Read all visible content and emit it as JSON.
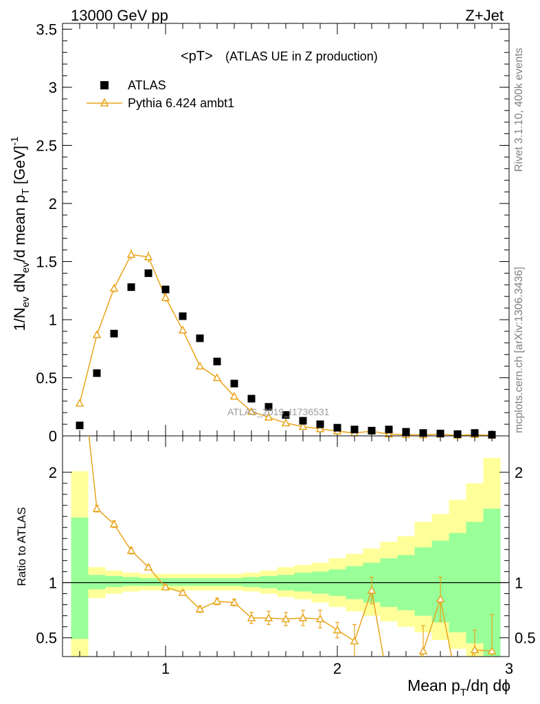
{
  "header": {
    "left": "13000 GeV pp",
    "right": "Z+Jet"
  },
  "plot_title": {
    "main": "<pT>",
    "sub": "(ATLAS UE in Z production)"
  },
  "side_labels": {
    "rivet": "Rivet 3.1.10,  400k events",
    "mcplots": "mcplots.cern.ch [arXiv:1306.3436]"
  },
  "watermark": "ATLAS_2019_I1736531",
  "legend": {
    "data": "ATLAS",
    "mc": "Pythia 6.424 ambt1"
  },
  "colors": {
    "data": "#000000",
    "mc": "#e8a317",
    "band_inner": "#99ff99",
    "band_outer": "#ffff99"
  },
  "chart_data": [
    {
      "type": "scatter",
      "panel": "main",
      "ylabel": "1/N_ev dN_ev/d mean p_T [GeV]^-1",
      "xlim": [
        0.4,
        3.0
      ],
      "ylim": [
        0,
        3.55
      ],
      "yticks": [
        "0",
        "0.5",
        "1",
        "1.5",
        "2",
        "2.5",
        "3",
        "3.5"
      ],
      "series": [
        {
          "name": "ATLAS",
          "x": [
            0.5,
            0.6,
            0.7,
            0.8,
            0.9,
            1.0,
            1.1,
            1.2,
            1.3,
            1.4,
            1.5,
            1.6,
            1.7,
            1.8,
            1.9,
            2.0,
            2.1,
            2.2,
            2.3,
            2.4,
            2.5,
            2.6,
            2.7,
            2.8,
            2.9
          ],
          "y": [
            0.09,
            0.54,
            0.88,
            1.28,
            1.4,
            1.26,
            1.03,
            0.84,
            0.64,
            0.45,
            0.32,
            0.25,
            0.18,
            0.13,
            0.1,
            0.07,
            0.055,
            0.045,
            0.055,
            0.035,
            0.025,
            0.02,
            0.015,
            0.025,
            0.01
          ]
        },
        {
          "name": "Pythia 6.424 ambt1",
          "x": [
            0.5,
            0.6,
            0.7,
            0.8,
            0.9,
            1.0,
            1.1,
            1.2,
            1.3,
            1.4,
            1.5,
            1.6,
            1.7,
            1.8,
            1.9,
            2.0,
            2.1,
            2.2,
            2.3,
            2.4,
            2.5,
            2.6,
            2.7,
            2.8,
            2.9
          ],
          "y": [
            0.28,
            0.87,
            1.27,
            1.56,
            1.54,
            1.19,
            0.91,
            0.6,
            0.5,
            0.34,
            0.21,
            0.16,
            0.11,
            0.08,
            0.06,
            0.04,
            0.025,
            0.04,
            0.015,
            0.01,
            0.008,
            0.015,
            0.004,
            0.01,
            0.004
          ],
          "err": [
            0.01,
            0.03,
            0.04,
            0.05,
            0.05,
            0.04,
            0.03,
            0.02,
            0.02,
            0.02,
            0.01,
            0.01,
            0.01,
            0.01,
            0.005,
            0.005,
            0.005,
            0.005,
            0.003,
            0.002,
            0.002,
            0.003,
            0.001,
            0.002,
            0.001
          ]
        }
      ]
    },
    {
      "type": "line",
      "panel": "ratio",
      "ylabel": "Ratio to ATLAS",
      "xlabel": "Mean p_T/dη dφ",
      "xlim": [
        0.4,
        3.0
      ],
      "ylim": [
        0.33,
        2.33
      ],
      "yticks": [
        "0.5",
        "1",
        "2"
      ],
      "xticks": [
        "1",
        "2",
        "3"
      ],
      "band_inner": [
        0.49,
        0.94,
        0.96,
        0.97,
        0.97,
        0.97,
        0.97,
        0.97,
        0.97,
        0.97,
        0.96,
        0.95,
        0.93,
        0.92,
        0.9,
        0.88,
        0.85,
        0.82,
        0.78,
        0.75,
        0.7,
        0.64,
        0.55,
        0.45,
        0.33
      ],
      "band_inner_hi": [
        1.59,
        1.07,
        1.06,
        1.05,
        1.04,
        1.04,
        1.04,
        1.04,
        1.04,
        1.04,
        1.05,
        1.06,
        1.07,
        1.09,
        1.1,
        1.12,
        1.15,
        1.18,
        1.22,
        1.25,
        1.32,
        1.38,
        1.45,
        1.55,
        1.67
      ],
      "band_outer": [
        0.33,
        0.86,
        0.9,
        0.92,
        0.93,
        0.93,
        0.93,
        0.93,
        0.93,
        0.93,
        0.92,
        0.9,
        0.87,
        0.85,
        0.82,
        0.78,
        0.74,
        0.7,
        0.65,
        0.6,
        0.55,
        0.48,
        0.4,
        0.33,
        0.33
      ],
      "band_outer_hi": [
        2.01,
        1.14,
        1.11,
        1.09,
        1.08,
        1.08,
        1.08,
        1.08,
        1.08,
        1.08,
        1.09,
        1.11,
        1.14,
        1.16,
        1.18,
        1.22,
        1.26,
        1.31,
        1.37,
        1.42,
        1.55,
        1.62,
        1.75,
        1.9,
        2.13
      ],
      "series": [
        {
          "name": "Pythia 6.424 ambt1",
          "x": [
            0.5,
            0.6,
            0.7,
            0.8,
            0.9,
            1.0,
            1.1,
            1.2,
            1.3,
            1.4,
            1.5,
            1.6,
            1.7,
            1.8,
            1.9,
            2.0,
            2.1,
            2.2,
            2.3,
            2.4,
            2.5,
            2.6,
            2.7,
            2.8,
            2.9
          ],
          "y": [
            3.1,
            1.67,
            1.53,
            1.29,
            1.14,
            0.96,
            0.91,
            0.76,
            0.83,
            0.82,
            0.68,
            0.68,
            0.67,
            0.68,
            0.67,
            0.57,
            0.47,
            0.93,
            0.05,
            0.05,
            0.38,
            0.85,
            0.05,
            0.39,
            0.38
          ],
          "err": [
            0.05,
            0.03,
            0.03,
            0.03,
            0.02,
            0.02,
            0.02,
            0.03,
            0.03,
            0.03,
            0.05,
            0.06,
            0.06,
            0.07,
            0.08,
            0.07,
            0.15,
            0.12,
            0.0,
            0.0,
            0.23,
            0.2,
            0.0,
            0.18,
            0.33
          ]
        }
      ]
    }
  ]
}
